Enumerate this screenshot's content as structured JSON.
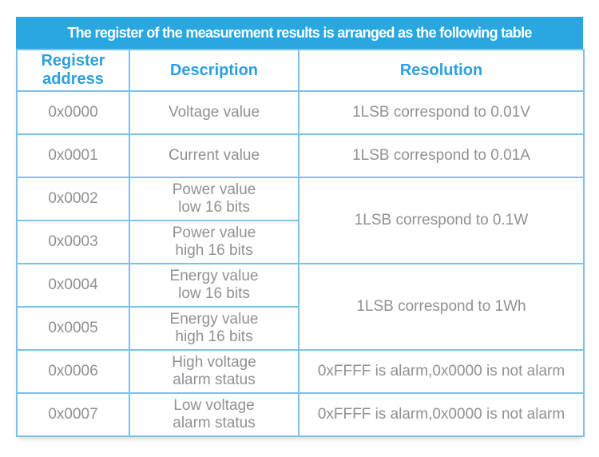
{
  "title": "The register of the measurement results is arranged as the following table",
  "colors": {
    "title_bar_background": "#29a7e0",
    "header_text_blue": "#2aa0de",
    "table_border_blue": "#7cc2e8",
    "cell_text_gray": "#8f9194",
    "title_text_white": "#ffffff"
  },
  "table": {
    "headers": {
      "register_address": "Register address",
      "description": "Description",
      "resolution": "Resolution"
    },
    "rows": [
      {
        "address": "0x0000",
        "description_line1": "Voltage value",
        "resolution": "1LSB correspond to 0.01V"
      },
      {
        "address": "0x0001",
        "description_line1": "Current value",
        "resolution": "1LSB correspond to 0.01A"
      },
      {
        "address": "0x0002",
        "description_line1": "Power value",
        "description_line2": "low 16 bits",
        "resolution": "1LSB correspond to 0.1W"
      },
      {
        "address": "0x0003",
        "description_line1": "Power value",
        "description_line2": "high 16 bits"
      },
      {
        "address": "0x0004",
        "description_line1": "Energy value",
        "description_line2": "low 16 bits",
        "resolution": "1LSB correspond to 1Wh"
      },
      {
        "address": "0x0005",
        "description_line1": "Energy value",
        "description_line2": "high 16 bits"
      },
      {
        "address": "0x0006",
        "description_line1": "High voltage",
        "description_line2": "alarm status",
        "resolution": "0xFFFF is alarm,0x0000 is not alarm"
      },
      {
        "address": "0x0007",
        "description_line1": "Low voltage",
        "description_line2": "alarm status",
        "resolution": "0xFFFF is alarm,0x0000 is not alarm"
      }
    ]
  }
}
